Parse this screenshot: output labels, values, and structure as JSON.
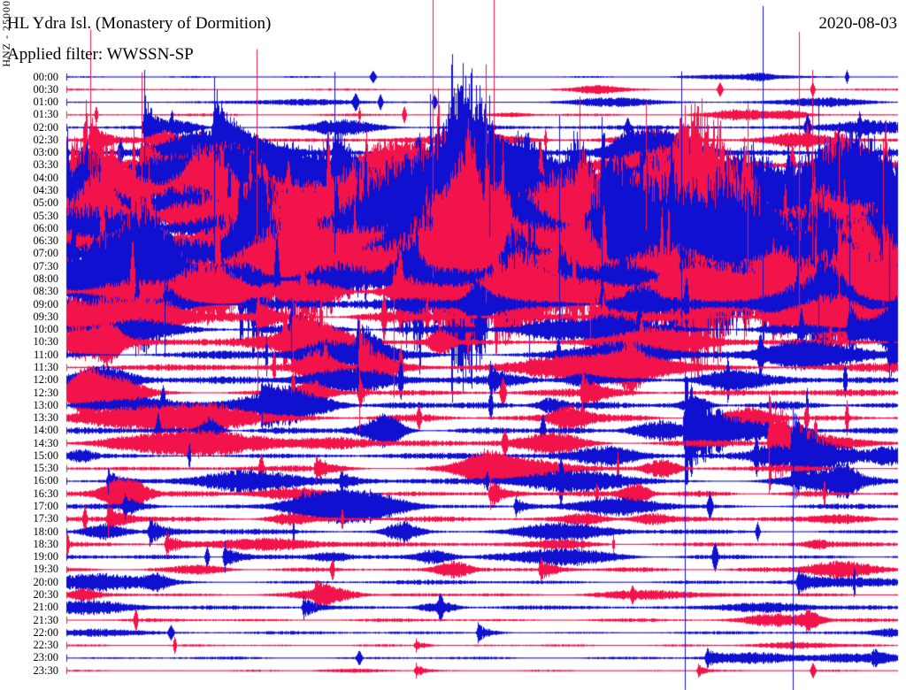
{
  "header": {
    "title": "HL Ydra Isl. (Monastery of Dormition)",
    "filter_label": "Applied filter: WWSSN-SP",
    "date": "2020-08-03"
  },
  "y_axis_label": "HNZ - 25000",
  "colors": {
    "trace_blue": "#1010d0",
    "trace_red": "#f2134b",
    "text": "#000000",
    "background": "#ffffff"
  },
  "chart_data": {
    "type": "helicorder-seismogram",
    "title": "HL Ydra Isl. (Monastery of Dormition)",
    "channel_scale_label": "HNZ - 25000",
    "applied_filter": "WWSSN-SP",
    "date": "2020-08-03",
    "minutes_per_row": 30,
    "row_color_rule": "rows starting on the hour are blue, half-hour rows are red",
    "time_range": [
      "00:00",
      "23:30"
    ],
    "activity_summary": "intense swarm saturating traces 02:00-08:30, decaying activity through evening; large discrete events at 14:00 and 15:00 with spikes running to page bottom",
    "rows": [
      {
        "t": "00:00",
        "c": "b",
        "n": 1.0,
        "b": 2,
        "s": 2
      },
      {
        "t": "00:30",
        "c": "r",
        "n": 1.1,
        "b": 2,
        "s": 2
      },
      {
        "t": "01:00",
        "c": "b",
        "n": 1.3,
        "b": 3,
        "s": 3
      },
      {
        "t": "01:30",
        "c": "r",
        "n": 1.4,
        "b": 3,
        "s": 3
      },
      {
        "t": "02:00",
        "c": "b",
        "n": 2.2,
        "b": 4,
        "s": 4
      },
      {
        "t": "02:30",
        "c": "r",
        "n": 2.8,
        "b": 4,
        "s": 4
      },
      {
        "t": "03:00",
        "c": "b",
        "n": 5,
        "b": 6,
        "s": 6
      },
      {
        "t": "03:30",
        "c": "r",
        "n": 7,
        "b": 6,
        "s": 6
      },
      {
        "t": "04:00",
        "c": "b",
        "n": 11,
        "b": 6,
        "s": 6
      },
      {
        "t": "04:30",
        "c": "r",
        "n": 15,
        "b": 6,
        "s": 6
      },
      {
        "t": "05:00",
        "c": "b",
        "n": 19,
        "b": 6,
        "s": 6
      },
      {
        "t": "05:30",
        "c": "r",
        "n": 22,
        "b": 6,
        "s": 6
      },
      {
        "t": "06:00",
        "c": "b",
        "n": 24,
        "b": 6,
        "s": 6
      },
      {
        "t": "06:30",
        "c": "r",
        "n": 25,
        "b": 6,
        "s": 6
      },
      {
        "t": "07:00",
        "c": "b",
        "n": 25,
        "b": 6,
        "s": 6
      },
      {
        "t": "07:30",
        "c": "r",
        "n": 23,
        "b": 6,
        "s": 6
      },
      {
        "t": "08:00",
        "c": "b",
        "n": 19,
        "b": 6,
        "s": 6
      },
      {
        "t": "08:30",
        "c": "r",
        "n": 13,
        "b": 6,
        "s": 6
      },
      {
        "t": "09:00",
        "c": "b",
        "n": 7,
        "b": 5,
        "s": 4
      },
      {
        "t": "09:30",
        "c": "r",
        "n": 6,
        "b": 5,
        "s": 4
      },
      {
        "t": "10:00",
        "c": "b",
        "n": 5.5,
        "b": 5,
        "s": 3
      },
      {
        "t": "10:30",
        "c": "r",
        "n": 5,
        "b": 5,
        "s": 3
      },
      {
        "t": "11:00",
        "c": "b",
        "n": 4.8,
        "b": 5,
        "s": 3
      },
      {
        "t": "11:30",
        "c": "r",
        "n": 4.6,
        "b": 5,
        "s": 3
      },
      {
        "t": "12:00",
        "c": "b",
        "n": 4.4,
        "b": 4,
        "s": 3
      },
      {
        "t": "12:30",
        "c": "r",
        "n": 4.2,
        "b": 4,
        "s": 3
      },
      {
        "t": "13:00",
        "c": "b",
        "n": 4.2,
        "b": 4,
        "s": 3
      },
      {
        "t": "13:30",
        "c": "r",
        "n": 4.0,
        "b": 4,
        "s": 3
      },
      {
        "t": "14:00",
        "c": "b",
        "n": 3.8,
        "b": 4,
        "s": 2
      },
      {
        "t": "14:30",
        "c": "r",
        "n": 3.8,
        "b": 4,
        "s": 2
      },
      {
        "t": "15:00",
        "c": "b",
        "n": 3.6,
        "b": 4,
        "s": 2
      },
      {
        "t": "15:30",
        "c": "r",
        "n": 3.2,
        "b": 4,
        "s": 2
      },
      {
        "t": "16:00",
        "c": "b",
        "n": 3.2,
        "b": 4,
        "s": 2
      },
      {
        "t": "16:30",
        "c": "r",
        "n": 3.0,
        "b": 4,
        "s": 2
      },
      {
        "t": "17:00",
        "c": "b",
        "n": 3.0,
        "b": 4,
        "s": 2
      },
      {
        "t": "17:30",
        "c": "r",
        "n": 2.8,
        "b": 4,
        "s": 2
      },
      {
        "t": "18:00",
        "c": "b",
        "n": 2.8,
        "b": 3,
        "s": 2
      },
      {
        "t": "18:30",
        "c": "r",
        "n": 2.6,
        "b": 3,
        "s": 2
      },
      {
        "t": "19:00",
        "c": "b",
        "n": 2.6,
        "b": 3,
        "s": 2
      },
      {
        "t": "19:30",
        "c": "r",
        "n": 2.4,
        "b": 3,
        "s": 1
      },
      {
        "t": "20:00",
        "c": "b",
        "n": 2.4,
        "b": 3,
        "s": 1
      },
      {
        "t": "20:30",
        "c": "r",
        "n": 2.2,
        "b": 3,
        "s": 1
      },
      {
        "t": "21:00",
        "c": "b",
        "n": 2.2,
        "b": 3,
        "s": 1
      },
      {
        "t": "21:30",
        "c": "r",
        "n": 1.9,
        "b": 2,
        "s": 1
      },
      {
        "t": "22:00",
        "c": "b",
        "n": 1.7,
        "b": 2,
        "s": 1
      },
      {
        "t": "22:30",
        "c": "r",
        "n": 1.3,
        "b": 1,
        "s": 1
      },
      {
        "t": "23:00",
        "c": "b",
        "n": 1.6,
        "b": 2,
        "s": 1
      },
      {
        "t": "23:30",
        "c": "r",
        "n": 1.0,
        "b": 1,
        "s": 1
      }
    ],
    "events": [
      [
        11,
        0.44,
        55,
        45,
        250,
        70
      ],
      [
        13,
        0.504,
        60,
        50,
        200,
        70
      ],
      [
        13,
        0.514,
        55,
        45,
        275,
        60
      ],
      [
        8,
        0.437,
        45,
        35,
        95,
        60
      ],
      [
        14,
        0.837,
        60,
        55,
        280,
        60
      ],
      [
        15,
        0.881,
        50,
        45,
        265,
        55
      ],
      [
        11,
        0.897,
        45,
        40,
        165,
        50
      ],
      [
        6,
        0.178,
        50,
        40,
        85,
        125
      ],
      [
        7,
        0.09,
        40,
        30,
        105,
        45
      ],
      [
        5,
        0.029,
        30,
        25,
        125,
        35
      ],
      [
        4,
        0.094,
        35,
        30,
        65,
        45
      ],
      [
        8,
        0.322,
        50,
        45,
        120,
        85
      ],
      [
        9,
        0.229,
        45,
        40,
        160,
        55
      ],
      [
        6,
        0.509,
        40,
        35,
        65,
        95
      ],
      [
        11,
        0.617,
        45,
        40,
        135,
        55
      ],
      [
        16,
        0.593,
        45,
        40,
        185,
        45
      ],
      [
        14,
        0.644,
        50,
        45,
        155,
        55
      ],
      [
        9,
        0.697,
        35,
        30,
        100,
        45
      ],
      [
        16,
        0.739,
        50,
        45,
        235,
        45
      ],
      [
        13,
        0.819,
        45,
        40,
        155,
        50
      ],
      [
        18,
        0.904,
        35,
        35,
        225,
        35
      ],
      [
        17,
        0.929,
        40,
        35,
        165,
        45
      ],
      [
        20,
        0.941,
        30,
        30,
        205,
        35
      ],
      [
        15,
        0.982,
        40,
        35,
        145,
        45
      ],
      [
        22,
        0.989,
        28,
        28,
        235,
        30
      ],
      [
        21,
        0.272,
        38,
        60,
        48,
        48
      ],
      [
        23,
        0.352,
        45,
        55,
        58,
        72
      ],
      [
        28,
        0.744,
        58,
        95,
        64,
        293
      ],
      [
        29,
        0.845,
        55,
        80,
        58,
        58
      ],
      [
        30,
        0.873,
        50,
        85,
        56,
        265
      ],
      [
        26,
        0.235,
        18,
        40,
        26,
        26
      ],
      [
        24,
        0.51,
        15,
        35,
        22,
        22
      ],
      [
        19,
        0.63,
        25,
        45,
        36,
        36
      ],
      [
        22,
        0.35,
        30,
        45,
        42,
        42
      ],
      [
        25,
        0.62,
        20,
        40,
        28,
        28
      ],
      [
        33,
        0.51,
        14,
        35,
        18,
        18
      ],
      [
        35,
        0.05,
        16,
        40,
        20,
        20
      ],
      [
        38,
        0.19,
        14,
        35,
        18,
        18
      ],
      [
        39,
        0.57,
        12,
        40,
        14,
        14
      ],
      [
        42,
        0.285,
        12,
        30,
        14,
        14
      ],
      [
        44,
        0.495,
        10,
        30,
        12,
        12
      ],
      [
        46,
        0.77,
        9,
        35,
        11,
        11
      ],
      [
        46,
        0.97,
        8,
        25,
        10,
        10
      ],
      [
        45,
        0.42,
        6,
        25,
        8,
        8
      ],
      [
        47,
        0.42,
        7,
        22,
        9,
        9
      ],
      [
        47,
        0.76,
        6,
        20,
        8,
        8
      ],
      [
        40,
        0.88,
        12,
        35,
        14,
        14
      ],
      [
        41,
        0.3,
        12,
        35,
        14,
        14
      ],
      [
        43,
        0.89,
        8,
        25,
        10,
        10
      ],
      [
        36,
        0.1,
        14,
        40,
        17,
        17
      ],
      [
        37,
        0.12,
        12,
        35,
        15,
        15
      ],
      [
        34,
        0.07,
        12,
        30,
        15,
        15
      ],
      [
        34,
        0.54,
        10,
        30,
        12,
        12
      ],
      [
        32,
        0.05,
        12,
        30,
        15,
        15
      ],
      [
        32,
        0.33,
        10,
        30,
        12,
        12
      ],
      [
        31,
        0.3,
        12,
        35,
        15,
        15
      ],
      [
        20,
        0.27,
        25,
        40,
        36,
        36
      ],
      [
        17,
        0.394,
        30,
        30,
        40,
        120
      ],
      [
        19,
        0.23,
        25,
        30,
        35,
        90
      ],
      [
        18,
        0.118,
        25,
        30,
        35,
        60
      ]
    ]
  }
}
